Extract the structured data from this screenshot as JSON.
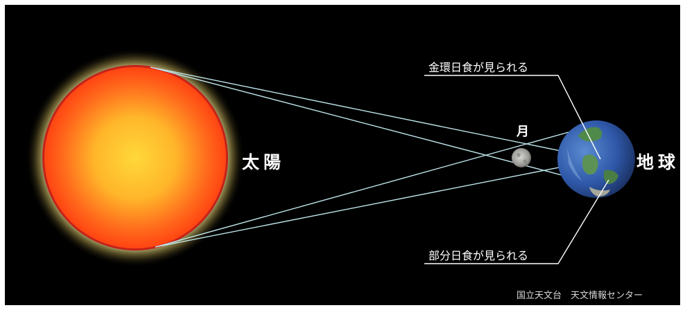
{
  "labels": {
    "sun": "太陽",
    "moon": "月",
    "earth": "地球",
    "annular": "金環日食が見られる",
    "partial": "部分日食が見られる",
    "credit": "国立天文台　天文情報センター"
  },
  "colors": {
    "background": "#000000",
    "frame": "#ffffff",
    "sun_core": "#ffd23a",
    "sun_edge": "#ff4a12",
    "sun_rim": "#c4221a",
    "sun_glow": "#d6d088",
    "rays": "#bfe6ec",
    "moon": "#b0b0ac",
    "earth_ocean": "#3a62b8",
    "earth_land": "#4f8a4a"
  },
  "icons": {
    "sun": "sun-disc-icon",
    "moon": "moon-icon",
    "earth": "earth-globe-icon"
  }
}
